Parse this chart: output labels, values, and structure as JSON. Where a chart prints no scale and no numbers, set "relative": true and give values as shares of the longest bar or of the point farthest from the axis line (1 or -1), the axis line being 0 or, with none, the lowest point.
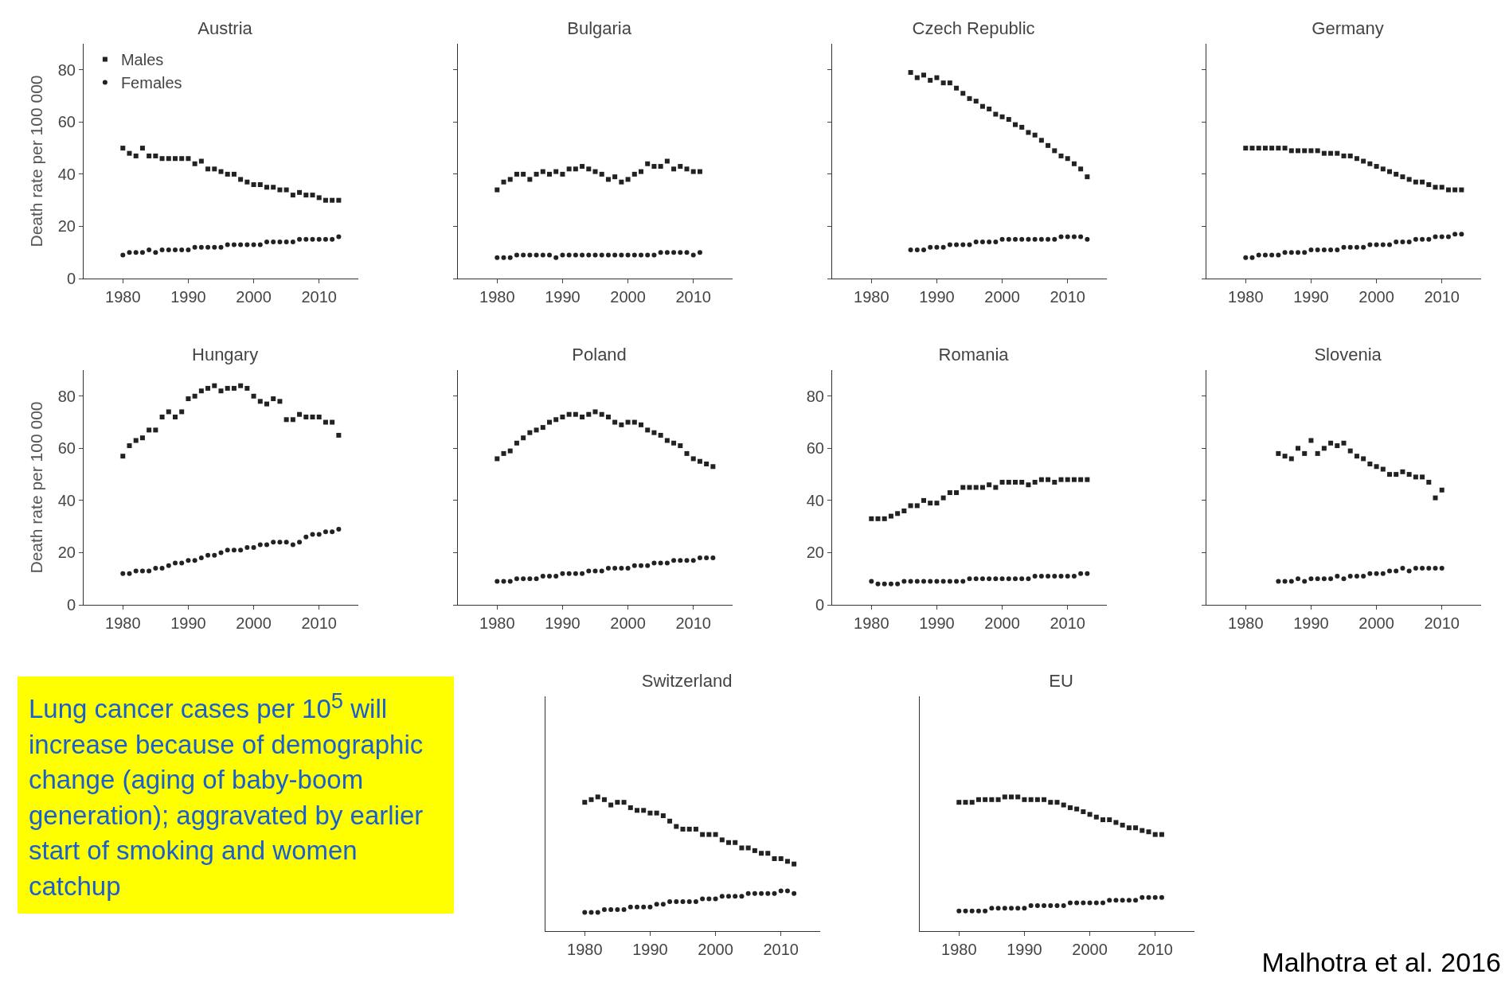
{
  "chart_data": [
    {
      "type": "scatter",
      "title": "Austria",
      "ylabel": "Death rate per 100 000",
      "legend": "top left",
      "grid": false,
      "xlim": [
        1974,
        2016
      ],
      "xticks": [
        1980,
        1990,
        2000,
        2010
      ],
      "ylim": [
        0,
        90
      ],
      "yticks": [
        0,
        20,
        40,
        60,
        80
      ],
      "x": [
        1980,
        1981,
        1982,
        1983,
        1984,
        1985,
        1986,
        1987,
        1988,
        1989,
        1990,
        1991,
        1992,
        1993,
        1994,
        1995,
        1996,
        1997,
        1998,
        1999,
        2000,
        2001,
        2002,
        2003,
        2004,
        2005,
        2006,
        2007,
        2008,
        2009,
        2010,
        2011,
        2012,
        2013
      ],
      "series": [
        {
          "name": "Males",
          "color": "#222222",
          "marker": "square",
          "values": [
            50,
            48,
            47,
            50,
            47,
            47,
            46,
            46,
            46,
            46,
            46,
            44,
            45,
            42,
            42,
            41,
            40,
            40,
            38,
            37,
            36,
            36,
            35,
            35,
            34,
            34,
            32,
            33,
            32,
            32,
            31,
            30,
            30,
            30
          ]
        },
        {
          "name": "Females",
          "color": "#222222",
          "marker": "circle",
          "values": [
            9,
            10,
            10,
            10,
            11,
            10,
            11,
            11,
            11,
            11,
            11,
            12,
            12,
            12,
            12,
            12,
            13,
            13,
            13,
            13,
            13,
            13,
            14,
            14,
            14,
            14,
            14,
            15,
            15,
            15,
            15,
            15,
            15,
            16
          ]
        }
      ]
    },
    {
      "type": "scatter",
      "title": "Bulgaria",
      "tick_labels": "x",
      "grid": false,
      "xlim": [
        1974,
        2016
      ],
      "xticks": [
        1980,
        1990,
        2000,
        2010
      ],
      "ylim": [
        0,
        90
      ],
      "yticks": [
        0,
        20,
        40,
        60,
        80
      ],
      "x": [
        1980,
        1981,
        1982,
        1983,
        1984,
        1985,
        1986,
        1987,
        1988,
        1989,
        1990,
        1991,
        1992,
        1993,
        1994,
        1995,
        1996,
        1997,
        1998,
        1999,
        2000,
        2001,
        2002,
        2003,
        2004,
        2005,
        2006,
        2007,
        2008,
        2009,
        2010,
        2011
      ],
      "series": [
        {
          "color": "#222222",
          "marker": "square",
          "values": [
            34,
            37,
            38,
            40,
            40,
            38,
            40,
            41,
            40,
            41,
            40,
            42,
            42,
            43,
            42,
            41,
            40,
            38,
            39,
            37,
            38,
            40,
            41,
            44,
            43,
            43,
            45,
            42,
            43,
            42,
            41,
            41
          ]
        },
        {
          "color": "#222222",
          "marker": "circle",
          "values": [
            8,
            8,
            8,
            9,
            9,
            9,
            9,
            9,
            9,
            8,
            9,
            9,
            9,
            9,
            9,
            9,
            9,
            9,
            9,
            9,
            9,
            9,
            9,
            9,
            9,
            10,
            10,
            10,
            10,
            10,
            9,
            10
          ]
        }
      ]
    },
    {
      "type": "scatter",
      "title": "Czech Republic",
      "tick_labels": "x",
      "grid": false,
      "xlim": [
        1974,
        2016
      ],
      "xticks": [
        1980,
        1990,
        2000,
        2010
      ],
      "ylim": [
        0,
        90
      ],
      "yticks": [
        0,
        20,
        40,
        60,
        80
      ],
      "x": [
        1986,
        1987,
        1988,
        1989,
        1990,
        1991,
        1992,
        1993,
        1994,
        1995,
        1996,
        1997,
        1998,
        1999,
        2000,
        2001,
        2002,
        2003,
        2004,
        2005,
        2006,
        2007,
        2008,
        2009,
        2010,
        2011,
        2012,
        2013
      ],
      "series": [
        {
          "color": "#222222",
          "marker": "square",
          "values": [
            79,
            77,
            78,
            76,
            77,
            75,
            75,
            73,
            71,
            69,
            68,
            66,
            65,
            63,
            62,
            61,
            59,
            58,
            56,
            55,
            53,
            51,
            49,
            47,
            46,
            44,
            42,
            39
          ]
        },
        {
          "color": "#222222",
          "marker": "circle",
          "values": [
            11,
            11,
            11,
            12,
            12,
            12,
            13,
            13,
            13,
            13,
            14,
            14,
            14,
            14,
            15,
            15,
            15,
            15,
            15,
            15,
            15,
            15,
            15,
            16,
            16,
            16,
            16,
            15
          ]
        }
      ]
    },
    {
      "type": "scatter",
      "title": "Germany",
      "tick_labels": "x",
      "grid": false,
      "xlim": [
        1974,
        2016
      ],
      "xticks": [
        1980,
        1990,
        2000,
        2010
      ],
      "ylim": [
        0,
        90
      ],
      "yticks": [
        0,
        20,
        40,
        60,
        80
      ],
      "x": [
        1980,
        1981,
        1982,
        1983,
        1984,
        1985,
        1986,
        1987,
        1988,
        1989,
        1990,
        1991,
        1992,
        1993,
        1994,
        1995,
        1996,
        1997,
        1998,
        1999,
        2000,
        2001,
        2002,
        2003,
        2004,
        2005,
        2006,
        2007,
        2008,
        2009,
        2010,
        2011,
        2012,
        2013
      ],
      "series": [
        {
          "color": "#222222",
          "marker": "square",
          "values": [
            50,
            50,
            50,
            50,
            50,
            50,
            50,
            49,
            49,
            49,
            49,
            49,
            48,
            48,
            48,
            47,
            47,
            46,
            45,
            44,
            43,
            42,
            41,
            40,
            39,
            38,
            37,
            37,
            36,
            35,
            35,
            34,
            34,
            34
          ]
        },
        {
          "color": "#222222",
          "marker": "circle",
          "values": [
            8,
            8,
            9,
            9,
            9,
            9,
            10,
            10,
            10,
            10,
            11,
            11,
            11,
            11,
            11,
            12,
            12,
            12,
            12,
            13,
            13,
            13,
            13,
            14,
            14,
            14,
            15,
            15,
            15,
            16,
            16,
            16,
            17,
            17
          ]
        }
      ]
    },
    {
      "type": "scatter",
      "title": "Hungary",
      "ylabel": "Death rate per 100 000",
      "grid": false,
      "xlim": [
        1974,
        2016
      ],
      "xticks": [
        1980,
        1990,
        2000,
        2010
      ],
      "ylim": [
        0,
        90
      ],
      "yticks": [
        0,
        20,
        40,
        60,
        80
      ],
      "x": [
        1980,
        1981,
        1982,
        1983,
        1984,
        1985,
        1986,
        1987,
        1988,
        1989,
        1990,
        1991,
        1992,
        1993,
        1994,
        1995,
        1996,
        1997,
        1998,
        1999,
        2000,
        2001,
        2002,
        2003,
        2004,
        2005,
        2006,
        2007,
        2008,
        2009,
        2010,
        2011,
        2012,
        2013
      ],
      "series": [
        {
          "color": "#222222",
          "marker": "square",
          "values": [
            57,
            61,
            63,
            64,
            67,
            67,
            72,
            74,
            72,
            74,
            79,
            80,
            82,
            83,
            84,
            82,
            83,
            83,
            84,
            83,
            80,
            78,
            77,
            79,
            78,
            71,
            71,
            73,
            72,
            72,
            72,
            70,
            70,
            65
          ]
        },
        {
          "color": "#222222",
          "marker": "circle",
          "values": [
            12,
            12,
            13,
            13,
            13,
            14,
            14,
            15,
            16,
            16,
            17,
            17,
            18,
            19,
            19,
            20,
            21,
            21,
            21,
            22,
            22,
            23,
            23,
            24,
            24,
            24,
            23,
            24,
            26,
            27,
            27,
            28,
            28,
            29
          ]
        }
      ]
    },
    {
      "type": "scatter",
      "title": "Poland",
      "tick_labels": "x",
      "grid": false,
      "xlim": [
        1974,
        2016
      ],
      "xticks": [
        1980,
        1990,
        2000,
        2010
      ],
      "ylim": [
        0,
        90
      ],
      "yticks": [
        0,
        20,
        40,
        60,
        80
      ],
      "x": [
        1980,
        1981,
        1982,
        1983,
        1984,
        1985,
        1986,
        1987,
        1988,
        1989,
        1990,
        1991,
        1992,
        1993,
        1994,
        1995,
        1996,
        1997,
        1998,
        1999,
        2000,
        2001,
        2002,
        2003,
        2004,
        2005,
        2006,
        2007,
        2008,
        2009,
        2010,
        2011,
        2012,
        2013
      ],
      "series": [
        {
          "color": "#222222",
          "marker": "square",
          "values": [
            56,
            58,
            59,
            62,
            64,
            66,
            67,
            68,
            70,
            71,
            72,
            73,
            73,
            72,
            73,
            74,
            73,
            72,
            70,
            69,
            70,
            70,
            69,
            67,
            66,
            65,
            63,
            62,
            61,
            58,
            56,
            55,
            54,
            53
          ]
        },
        {
          "color": "#222222",
          "marker": "circle",
          "values": [
            9,
            9,
            9,
            10,
            10,
            10,
            10,
            11,
            11,
            11,
            12,
            12,
            12,
            12,
            13,
            13,
            13,
            14,
            14,
            14,
            14,
            15,
            15,
            15,
            16,
            16,
            16,
            17,
            17,
            17,
            17,
            18,
            18,
            18
          ]
        }
      ]
    },
    {
      "type": "scatter",
      "title": "Romania",
      "grid": false,
      "xlim": [
        1974,
        2016
      ],
      "xticks": [
        1980,
        1990,
        2000,
        2010
      ],
      "ylim": [
        0,
        90
      ],
      "yticks": [
        0,
        20,
        40,
        60,
        80
      ],
      "x": [
        1980,
        1981,
        1982,
        1983,
        1984,
        1985,
        1986,
        1987,
        1988,
        1989,
        1990,
        1991,
        1992,
        1993,
        1994,
        1995,
        1996,
        1997,
        1998,
        1999,
        2000,
        2001,
        2002,
        2003,
        2004,
        2005,
        2006,
        2007,
        2008,
        2009,
        2010,
        2011,
        2012,
        2013
      ],
      "series": [
        {
          "color": "#222222",
          "marker": "square",
          "values": [
            33,
            33,
            33,
            34,
            35,
            36,
            38,
            38,
            40,
            39,
            39,
            41,
            43,
            43,
            45,
            45,
            45,
            45,
            46,
            45,
            47,
            47,
            47,
            47,
            46,
            47,
            48,
            48,
            47,
            48,
            48,
            48,
            48,
            48
          ]
        },
        {
          "color": "#222222",
          "marker": "circle",
          "values": [
            9,
            8,
            8,
            8,
            8,
            9,
            9,
            9,
            9,
            9,
            9,
            9,
            9,
            9,
            9,
            10,
            10,
            10,
            10,
            10,
            10,
            10,
            10,
            10,
            10,
            11,
            11,
            11,
            11,
            11,
            11,
            11,
            12,
            12
          ]
        }
      ]
    },
    {
      "type": "scatter",
      "title": "Slovenia",
      "tick_labels": "x",
      "grid": false,
      "xlim": [
        1974,
        2016
      ],
      "xticks": [
        1980,
        1990,
        2000,
        2010
      ],
      "ylim": [
        0,
        90
      ],
      "yticks": [
        0,
        20,
        40,
        60,
        80
      ],
      "x": [
        1985,
        1986,
        1987,
        1988,
        1989,
        1990,
        1991,
        1992,
        1993,
        1994,
        1995,
        1996,
        1997,
        1998,
        1999,
        2000,
        2001,
        2002,
        2003,
        2004,
        2005,
        2006,
        2007,
        2008,
        2009,
        2010
      ],
      "series": [
        {
          "color": "#222222",
          "marker": "square",
          "values": [
            58,
            57,
            56,
            60,
            58,
            63,
            58,
            60,
            62,
            61,
            62,
            59,
            57,
            56,
            54,
            53,
            52,
            50,
            50,
            51,
            50,
            49,
            49,
            47,
            41,
            44
          ]
        },
        {
          "color": "#222222",
          "marker": "circle",
          "values": [
            9,
            9,
            9,
            10,
            9,
            10,
            10,
            10,
            10,
            11,
            10,
            11,
            11,
            11,
            12,
            12,
            12,
            13,
            13,
            14,
            13,
            14,
            14,
            14,
            14,
            14
          ]
        }
      ]
    },
    {
      "type": "other",
      "annotations": [
        "Lung cancer cases per 10$^{5}$ will increase because of demographic change (aging of baby-boom generation); aggravated by earlier start of smoking and women catchup",
        "Malhotra et al. 2016"
      ]
    },
    {
      "type": "scatter",
      "title": "Switzerland",
      "relative": true,
      "grid": false,
      "xlim": [
        1974,
        2016
      ],
      "xticks": [
        1980,
        1990,
        2000,
        2010
      ],
      "x": [
        1980,
        1981,
        1982,
        1983,
        1984,
        1985,
        1986,
        1987,
        1988,
        1989,
        1990,
        1991,
        1992,
        1993,
        1994,
        1995,
        1996,
        1997,
        1998,
        1999,
        2000,
        2001,
        2002,
        2003,
        2004,
        2005,
        2006,
        2007,
        2008,
        2009,
        2010,
        2011,
        2012
      ],
      "series": [
        {
          "color": "#222222",
          "marker": "square",
          "values": [
            0.96,
            0.98,
            1,
            0.98,
            0.94,
            0.96,
            0.96,
            0.92,
            0.9,
            0.9,
            0.88,
            0.88,
            0.86,
            0.82,
            0.78,
            0.76,
            0.76,
            0.76,
            0.72,
            0.72,
            0.72,
            0.68,
            0.66,
            0.66,
            0.62,
            0.62,
            0.6,
            0.58,
            0.58,
            0.54,
            0.54,
            0.52,
            0.5
          ]
        },
        {
          "color": "#222222",
          "marker": "circle",
          "values": [
            0.14,
            0.14,
            0.14,
            0.16,
            0.16,
            0.16,
            0.16,
            0.18,
            0.18,
            0.18,
            0.18,
            0.2,
            0.2,
            0.22,
            0.22,
            0.22,
            0.22,
            0.22,
            0.24,
            0.24,
            0.24,
            0.26,
            0.26,
            0.26,
            0.26,
            0.28,
            0.28,
            0.28,
            0.28,
            0.28,
            0.3,
            0.3,
            0.28
          ]
        }
      ]
    },
    {
      "type": "scatter",
      "title": "EU",
      "relative": true,
      "grid": false,
      "xlim": [
        1974,
        2016
      ],
      "xticks": [
        1980,
        1990,
        2000,
        2010
      ],
      "x": [
        1980,
        1981,
        1982,
        1983,
        1984,
        1985,
        1986,
        1987,
        1988,
        1989,
        1990,
        1991,
        1992,
        1993,
        1994,
        1995,
        1996,
        1997,
        1998,
        1999,
        2000,
        2001,
        2002,
        2003,
        2004,
        2005,
        2006,
        2007,
        2008,
        2009,
        2010,
        2011
      ],
      "series": [
        {
          "color": "#222222",
          "marker": "square",
          "values": [
            0.96,
            0.96,
            0.96,
            0.98,
            0.98,
            0.98,
            0.98,
            1,
            1,
            1,
            0.98,
            0.98,
            0.98,
            0.98,
            0.96,
            0.96,
            0.94,
            0.92,
            0.91,
            0.89,
            0.87,
            0.85,
            0.83,
            0.83,
            0.81,
            0.79,
            0.77,
            0.77,
            0.75,
            0.74,
            0.72,
            0.72
          ]
        },
        {
          "color": "#222222",
          "marker": "circle",
          "values": [
            0.15,
            0.15,
            0.15,
            0.15,
            0.15,
            0.17,
            0.17,
            0.17,
            0.17,
            0.17,
            0.17,
            0.19,
            0.19,
            0.19,
            0.19,
            0.19,
            0.19,
            0.21,
            0.21,
            0.21,
            0.21,
            0.21,
            0.21,
            0.23,
            0.23,
            0.23,
            0.23,
            0.23,
            0.25,
            0.25,
            0.25,
            0.25
          ]
        }
      ]
    }
  ]
}
